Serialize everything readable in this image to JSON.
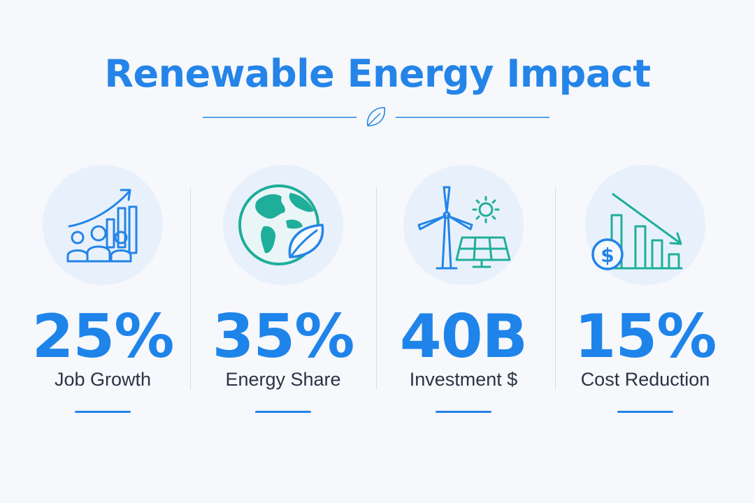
{
  "title": "Renewable Energy Impact",
  "colors": {
    "accent": "#2484e8",
    "teal": "#1fae9a",
    "text": "#2a3444",
    "circle": "#e8f1fb",
    "background": "#f6f8fb"
  },
  "divider_icon": "leaf-icon",
  "stats": [
    {
      "value": "25%",
      "label": "Job Growth",
      "icon": "job-growth-icon"
    },
    {
      "value": "35%",
      "label": "Energy Share",
      "icon": "globe-leaf-icon"
    },
    {
      "value": "40B",
      "label": "Investment $",
      "icon": "wind-solar-icon"
    },
    {
      "value": "15%",
      "label": "Cost Reduction",
      "icon": "cost-reduction-icon"
    }
  ]
}
